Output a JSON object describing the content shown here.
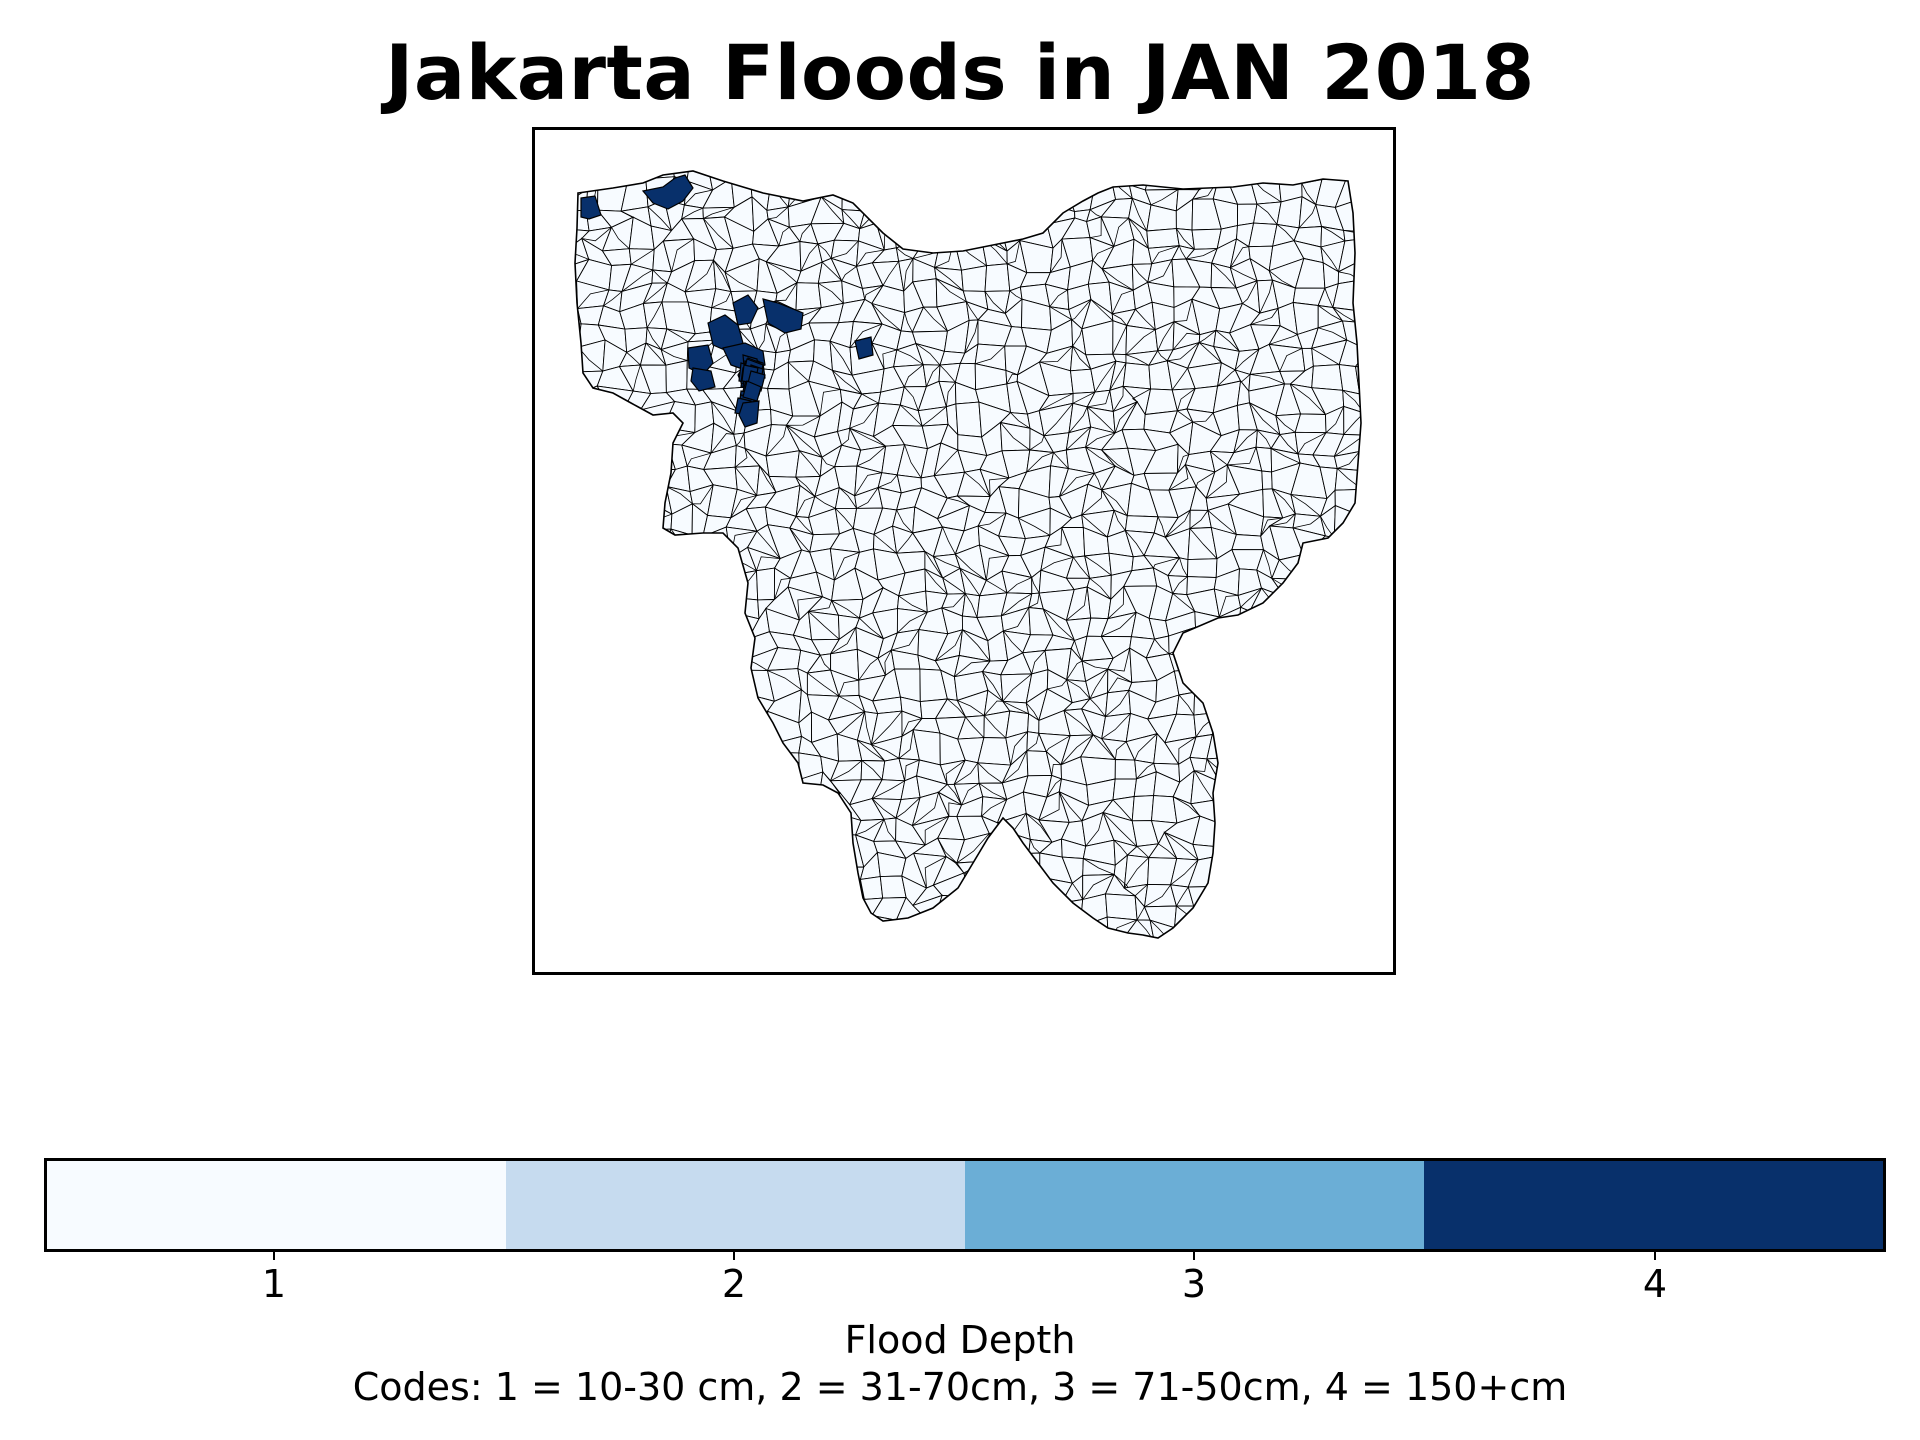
{
  "map": {
    "title": "Jakarta Floods in JAN 2018",
    "region": "Jakarta",
    "legend_colors": [
      "#f7fbff",
      "#c6dbef",
      "#6baed6",
      "#08306b"
    ],
    "boundary_color": "#000000",
    "base_fill": "#f7fbff"
  },
  "colorbar": {
    "ticks": [
      "1",
      "2",
      "3",
      "4"
    ],
    "label": "Flood Depth",
    "note": "Codes: 1 = 10-30 cm, 2 = 31-70cm, 3 = 71-50cm, 4 = 150+cm"
  }
}
